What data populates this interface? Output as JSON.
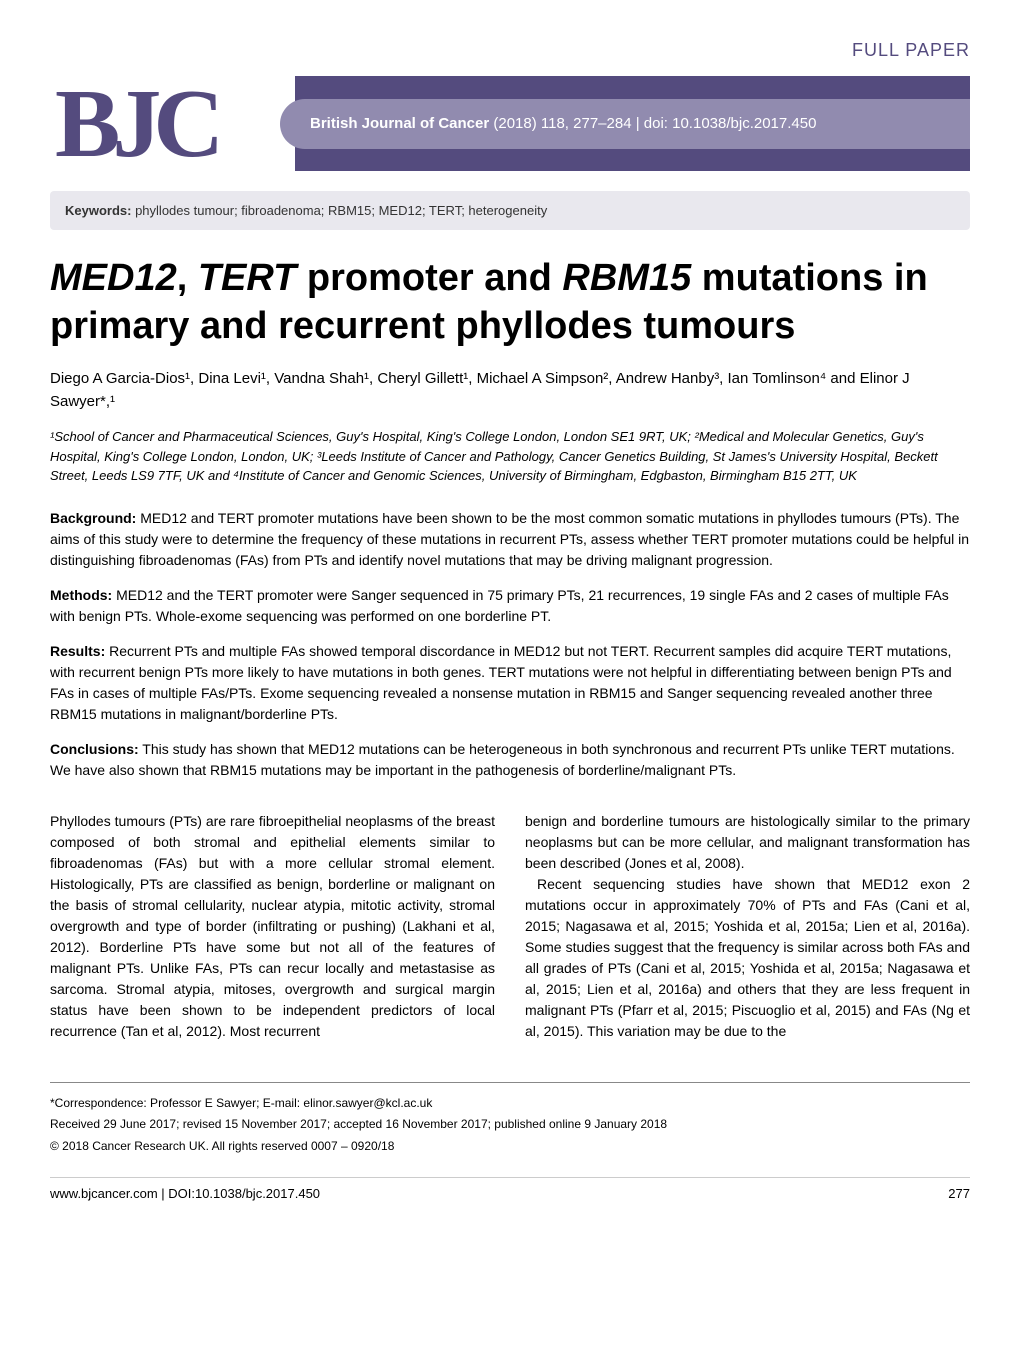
{
  "header": {
    "paper_type": "FULL PAPER",
    "logo": "BJC",
    "journal_name": "British Journal of Cancer",
    "journal_citation": " (2018) 118, 277–284 | doi: 10.1038/bjc.2017.450"
  },
  "keywords": {
    "label": "Keywords:",
    "text": " phyllodes tumour; fibroadenoma; RBM15; MED12; TERT; heterogeneity"
  },
  "title": {
    "part1": "MED12",
    "part2": ", ",
    "part3": "TERT",
    "part4": " promoter and ",
    "part5": "RBM15",
    "part6": " mutations in primary and recurrent phyllodes tumours"
  },
  "authors": "Diego A Garcia-Dios¹, Dina Levi¹, Vandna Shah¹, Cheryl Gillett¹, Michael A Simpson², Andrew Hanby³, Ian Tomlinson⁴ and Elinor J Sawyer*,¹",
  "affiliations": "¹School of Cancer and Pharmaceutical Sciences, Guy's Hospital, King's College London, London SE1 9RT, UK; ²Medical and Molecular Genetics, Guy's Hospital, King's College London, London, UK; ³Leeds Institute of Cancer and Pathology, Cancer Genetics Building, St James's University Hospital, Beckett Street, Leeds LS9 7TF, UK and ⁴Institute of Cancer and Genomic Sciences, University of Birmingham, Edgbaston, Birmingham B15 2TT, UK",
  "abstract": {
    "background": {
      "label": "Background:",
      "text": " MED12 and TERT promoter mutations have been shown to be the most common somatic mutations in phyllodes tumours (PTs). The aims of this study were to determine the frequency of these mutations in recurrent PTs, assess whether TERT promoter mutations could be helpful in distinguishing fibroadenomas (FAs) from PTs and identify novel mutations that may be driving malignant progression."
    },
    "methods": {
      "label": "Methods:",
      "text": " MED12 and the TERT promoter were Sanger sequenced in 75 primary PTs, 21 recurrences, 19 single FAs and 2 cases of multiple FAs with benign PTs. Whole-exome sequencing was performed on one borderline PT."
    },
    "results": {
      "label": "Results:",
      "text": " Recurrent PTs and multiple FAs showed temporal discordance in MED12 but not TERT. Recurrent samples did acquire TERT mutations, with recurrent benign PTs more likely to have mutations in both genes. TERT mutations were not helpful in differentiating between benign PTs and FAs in cases of multiple FAs/PTs. Exome sequencing revealed a nonsense mutation in RBM15 and Sanger sequencing revealed another three RBM15 mutations in malignant/borderline PTs."
    },
    "conclusions": {
      "label": "Conclusions:",
      "text": " This study has shown that MED12 mutations can be heterogeneous in both synchronous and recurrent PTs unlike TERT mutations. We have also shown that RBM15 mutations may be important in the pathogenesis of borderline/malignant PTs."
    }
  },
  "body": {
    "col1": {
      "p1": "Phyllodes tumours (PTs) are rare fibroepithelial neoplasms of the breast composed of both stromal and epithelial elements similar to fibroadenomas (FAs) but with a more cellular stromal element. Histologically, PTs are classified as benign, borderline or malignant on the basis of stromal cellularity, nuclear atypia, mitotic activity, stromal overgrowth and type of border (infiltrating or pushing) (Lakhani et al, 2012). Borderline PTs have some but not all of the features of malignant PTs. Unlike FAs, PTs can recur locally and metastasise as sarcoma. Stromal atypia, mitoses, overgrowth and surgical margin status have been shown to be independent predictors of local recurrence (Tan et al, 2012). Most recurrent"
    },
    "col2": {
      "p1": "benign and borderline tumours are histologically similar to the primary neoplasms but can be more cellular, and malignant transformation has been described (Jones et al, 2008).",
      "p2": "Recent sequencing studies have shown that MED12 exon 2 mutations occur in approximately 70% of PTs and FAs (Cani et al, 2015; Nagasawa et al, 2015; Yoshida et al, 2015a; Lien et al, 2016a). Some studies suggest that the frequency is similar across both FAs and all grades of PTs (Cani et al, 2015; Yoshida et al, 2015a; Nagasawa et al, 2015; Lien et al, 2016a) and others that they are less frequent in malignant PTs (Pfarr et al, 2015; Piscuoglio et al, 2015) and FAs (Ng et al, 2015). This variation may be due to the"
    }
  },
  "footer": {
    "correspondence": "*Correspondence: Professor E Sawyer; E-mail: elinor.sawyer@kcl.ac.uk",
    "received": "Received 29 June 2017; revised 15 November 2017; accepted 16 November 2017; published online 9 January 2018",
    "copyright": "© 2018 Cancer Research UK. All rights reserved 0007 – 0920/18",
    "url": "www.bjcancer.com | DOI:10.1038/bjc.2017.450",
    "page_number": "277"
  },
  "colors": {
    "banner_bg": "#544b7e",
    "pill_bg": "#918baf",
    "keywords_bg": "#e9e8ee"
  }
}
